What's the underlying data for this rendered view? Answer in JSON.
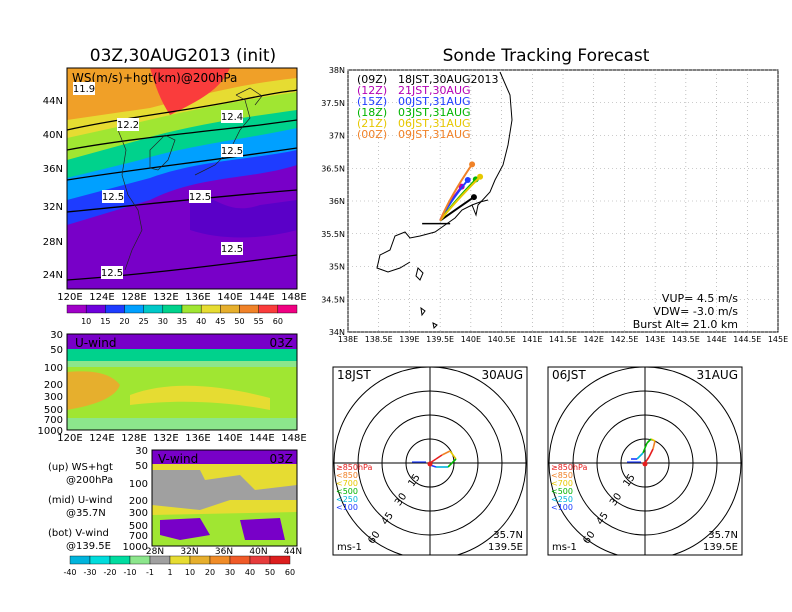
{
  "titles": {
    "left": "03Z,30AUG2013 (init)",
    "right": "Sonde Tracking Forecast"
  },
  "ws_panel": {
    "label": "WS(m/s)+hgt(km)@200hPa",
    "contour_labels": [
      "11.9",
      "12.2",
      "12.4",
      "12.5",
      "12.5",
      "12.5",
      "12.5",
      "12.5"
    ],
    "lat_ticks": [
      "44N",
      "40N",
      "36N",
      "32N",
      "28N",
      "24N"
    ],
    "lon_ticks": [
      "120E",
      "124E",
      "128E",
      "132E",
      "136E",
      "140E",
      "144E",
      "148E"
    ],
    "colorbar_ticks": [
      "10",
      "15",
      "20",
      "25",
      "30",
      "35",
      "40",
      "45",
      "50",
      "55",
      "60"
    ],
    "colorbar_colors": [
      "#a000c8",
      "#6e00dc",
      "#1e3cff",
      "#00a0ff",
      "#00c8c8",
      "#00d28c",
      "#a0e632",
      "#e6dc32",
      "#e6af2d",
      "#f08228",
      "#fa3c3c",
      "#f00082"
    ]
  },
  "u_panel": {
    "label": "U-wind",
    "time": "03Z",
    "p_ticks": [
      "30",
      "50",
      "100",
      "200",
      "300",
      "500",
      "700",
      "1000"
    ],
    "lon_ticks": [
      "120E",
      "124E",
      "128E",
      "132E",
      "136E",
      "140E",
      "144E",
      "148E"
    ]
  },
  "v_panel": {
    "label": "V-wind",
    "time": "03Z",
    "p_ticks": [
      "30",
      "50",
      "100",
      "200",
      "300",
      "500",
      "700",
      "1000"
    ],
    "lat_ticks": [
      "28N",
      "32N",
      "36N",
      "40N",
      "44N"
    ]
  },
  "legend_text": {
    "up1": "(up) WS+hgt",
    "up2": "@200hPa",
    "mid1": "(mid) U-wind",
    "mid2": "@35.7N",
    "bot1": "(bot) V-wind",
    "bot2": "@139.5E"
  },
  "wind_colorbar": {
    "ticks": [
      "-40",
      "-30",
      "-20",
      "-10",
      "-1",
      "1",
      "10",
      "20",
      "30",
      "40",
      "50",
      "60"
    ],
    "colors": [
      "#00b4dc",
      "#00dcdc",
      "#00dca0",
      "#8ce68c",
      "#a0a0a0",
      "#e6dc32",
      "#e6af2d",
      "#f08c28",
      "#f05a28",
      "#e63c3c",
      "#dc1e1e"
    ]
  },
  "track_map": {
    "lat_ticks": [
      "38N",
      "37.5N",
      "37N",
      "36.5N",
      "36N",
      "35.5N",
      "35N",
      "34.5N",
      "34N"
    ],
    "lon_ticks": [
      "138E",
      "138.5E",
      "139E",
      "139.5E",
      "140E",
      "140.5E",
      "141E",
      "141.5E",
      "142E",
      "142.5E",
      "143E",
      "143.5E",
      "144E",
      "144.5E",
      "145E"
    ],
    "info": {
      "vup": "VUP= 4.5 m/s",
      "vdw": "VDW= -3.0 m/s",
      "burst": "Burst Alt= 21.0 km"
    },
    "launch": {
      "lon": 139.5,
      "lat": 35.7
    },
    "tracks": [
      {
        "tag": "(09Z)",
        "label": "18JST,30AUG2013",
        "color": "#000000",
        "end": [
          140.05,
          36.06
        ]
      },
      {
        "tag": "(12Z)",
        "label": "21JST,30AUG",
        "color": "#b400b4",
        "end": [
          139.85,
          36.22
        ]
      },
      {
        "tag": "(15Z)",
        "label": "00JST,31AUG",
        "color": "#1e3cff",
        "end": [
          139.95,
          36.32
        ]
      },
      {
        "tag": "(18Z)",
        "label": "03JST,31AUG",
        "color": "#00b400",
        "end": [
          140.08,
          36.33
        ]
      },
      {
        "tag": "(21Z)",
        "label": "06JST,31AUG",
        "color": "#e6c800",
        "end": [
          140.15,
          36.37
        ]
      },
      {
        "tag": "(00Z)",
        "label": "09JST,31AUG",
        "color": "#f08228",
        "end": [
          140.02,
          36.56
        ]
      }
    ]
  },
  "hodographs": [
    {
      "time": "18JST",
      "date": "30AUG",
      "lat": "35.7N",
      "lon": "139.5E",
      "unit": "ms-1",
      "ring_labels": [
        "15",
        "30",
        "45",
        "60"
      ],
      "levels": [
        "≥850hPa",
        "<850",
        "<700",
        "<500",
        "<250",
        "<100"
      ]
    },
    {
      "time": "06JST",
      "date": "31AUG",
      "lat": "35.7N",
      "lon": "139.5E",
      "unit": "ms-1",
      "ring_labels": [
        "15",
        "30",
        "45",
        "60"
      ],
      "levels": [
        "≥850hPa",
        "<850",
        "<700",
        "<500",
        "<250",
        "<100"
      ]
    }
  ],
  "level_colors": [
    "#e61e1e",
    "#f08228",
    "#e6c800",
    "#00b400",
    "#00b4dc",
    "#1e3cff"
  ]
}
